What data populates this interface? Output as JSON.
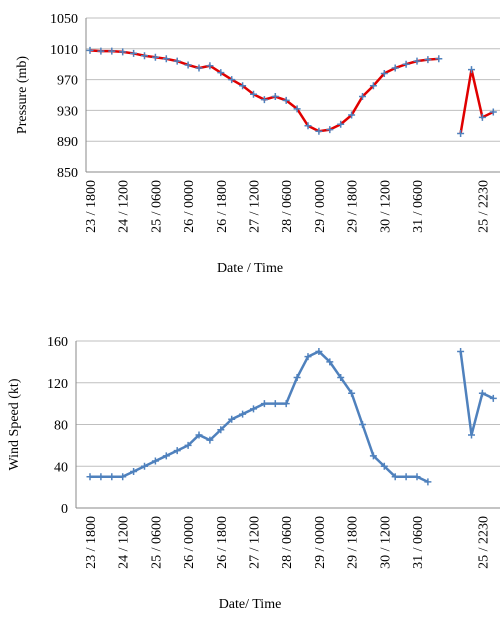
{
  "chart_data": [
    {
      "type": "line",
      "y_label": "Pressure (mb)",
      "x_label": "Date / Time",
      "categories": [
        "23 / 1800",
        null,
        null,
        "24 / 1200",
        null,
        null,
        "25 / 0600",
        null,
        null,
        "26 / 0000",
        null,
        null,
        "26 / 1800",
        null,
        null,
        "27 / 1200",
        null,
        null,
        "28 / 0600",
        null,
        null,
        "29 / 0000",
        null,
        null,
        "29 / 1800",
        null,
        null,
        "30 / 1200",
        null,
        null,
        "31 / 0600",
        null,
        null,
        null,
        null,
        null,
        "25 / 2230",
        null
      ],
      "series": [
        {
          "color": "#e00000",
          "marker_color": "#4f81bd",
          "values": [
            1008,
            1007,
            1007,
            1006,
            1004,
            1001,
            999,
            997,
            994,
            989,
            985,
            988,
            979,
            970,
            962,
            951,
            944,
            948,
            943,
            932,
            910,
            903,
            905,
            912,
            924,
            948,
            962,
            978,
            985,
            990,
            994,
            996,
            997,
            null,
            900,
            983,
            921,
            928
          ]
        }
      ],
      "ylim": [
        850,
        1050
      ],
      "yticks": [
        850,
        890,
        930,
        970,
        1010,
        1050
      ],
      "grid": true
    },
    {
      "type": "line",
      "y_label": "Wind Speed (kt)",
      "x_label": "Date/ Time",
      "categories": [
        "23 / 1800",
        null,
        null,
        "24 / 1200",
        null,
        null,
        "25 / 0600",
        null,
        null,
        "26 / 0000",
        null,
        null,
        "26 / 1800",
        null,
        null,
        "27 / 1200",
        null,
        null,
        "28 / 0600",
        null,
        null,
        "29 / 0000",
        null,
        null,
        "29 / 1800",
        null,
        null,
        "30 / 1200",
        null,
        null,
        "31 / 0600",
        null,
        null,
        null,
        null,
        null,
        "25 / 2230",
        null
      ],
      "series": [
        {
          "color": "#4f81bd",
          "marker_color": "#4f81bd",
          "values": [
            30,
            30,
            30,
            30,
            35,
            40,
            45,
            50,
            55,
            60,
            70,
            65,
            75,
            85,
            90,
            95,
            100,
            100,
            100,
            125,
            145,
            150,
            140,
            125,
            110,
            80,
            50,
            40,
            30,
            30,
            30,
            25,
            null,
            null,
            150,
            70,
            110,
            105
          ]
        }
      ],
      "ylim": [
        0,
        160
      ],
      "yticks": [
        0,
        40,
        80,
        120,
        160
      ],
      "grid": true
    }
  ]
}
